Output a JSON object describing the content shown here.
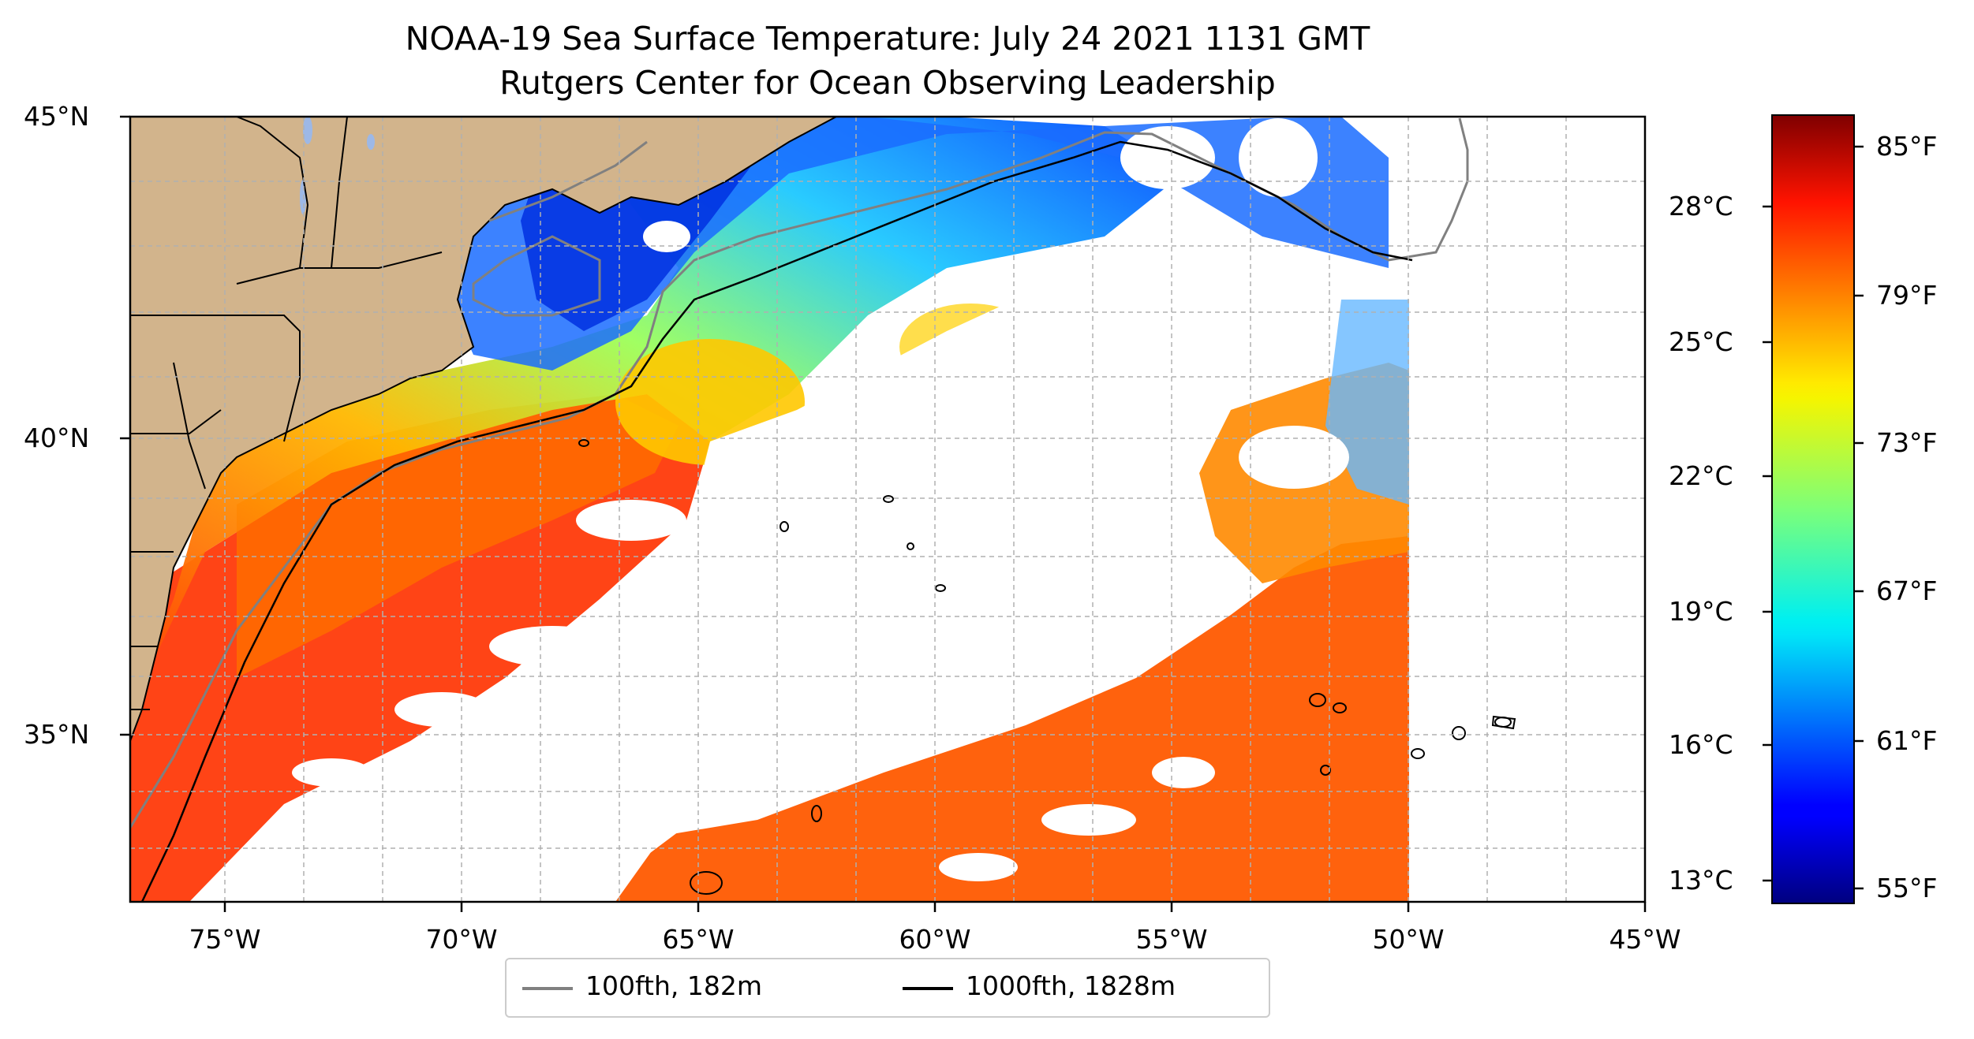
{
  "title_line1": "NOAA-19 Sea Surface Temperature: July 24 2021 1131 GMT",
  "title_line2": "Rutgers Center for Ocean Observing Leadership",
  "lat_labels": [
    "45°N",
    "40°N",
    "35°N"
  ],
  "lon_labels": [
    "75°W",
    "70°W",
    "65°W",
    "60°W",
    "55°W",
    "50°W",
    "45°W"
  ],
  "colorbar": {
    "celsius_labels": [
      "28°C",
      "25°C",
      "22°C",
      "19°C",
      "16°C",
      "13°C"
    ],
    "fahrenheit_labels": [
      "85°F",
      "79°F",
      "73°F",
      "67°F",
      "61°F",
      "55°F"
    ],
    "colormap": "jet"
  },
  "legend": {
    "items": [
      {
        "label": "100fth, 182m",
        "color": "#808080"
      },
      {
        "label": "1000fth, 1828m",
        "color": "#000000"
      }
    ]
  },
  "colors": {
    "land": "#d2b48c",
    "lakes": "#9db8e6",
    "clouds": "#ffffff",
    "gridline": "#b0b0b0"
  }
}
